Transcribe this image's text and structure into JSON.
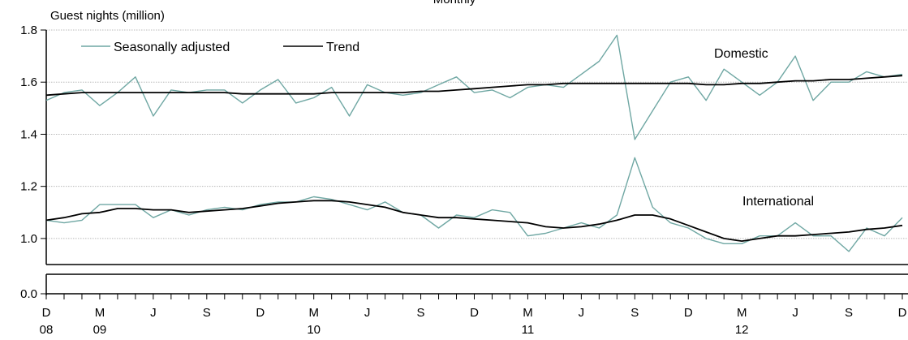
{
  "chart_data": {
    "type": "line",
    "title": "Monthly",
    "ylabel": "Guest nights (million)",
    "ylim": [
      0.9,
      1.8
    ],
    "y_axis_break": {
      "lower_label": "0.0"
    },
    "y_ticks": [
      1.0,
      1.2,
      1.4,
      1.6,
      1.8
    ],
    "y_tick_labels": [
      "1.0",
      "1.2",
      "1.4",
      "1.6",
      "1.8"
    ],
    "grid": true,
    "legend_position": "top-left",
    "legend": [
      {
        "label": "Seasonally adjusted",
        "color": "#6fa7a3"
      },
      {
        "label": "Trend",
        "color": "#000000"
      }
    ],
    "annotations": [
      "Domestic",
      "International"
    ],
    "x_ticks": [
      {
        "month": "D",
        "year": "08"
      },
      {
        "month": "M",
        "year": "09"
      },
      {
        "month": "J",
        "year": ""
      },
      {
        "month": "S",
        "year": ""
      },
      {
        "month": "D",
        "year": ""
      },
      {
        "month": "M",
        "year": "10"
      },
      {
        "month": "J",
        "year": ""
      },
      {
        "month": "S",
        "year": ""
      },
      {
        "month": "D",
        "year": ""
      },
      {
        "month": "M",
        "year": "11"
      },
      {
        "month": "J",
        "year": ""
      },
      {
        "month": "S",
        "year": ""
      },
      {
        "month": "D",
        "year": ""
      },
      {
        "month": "M",
        "year": "12"
      },
      {
        "month": "J",
        "year": ""
      },
      {
        "month": "S",
        "year": ""
      },
      {
        "month": "D",
        "year": ""
      }
    ],
    "x": [
      "2008-12",
      "2009-01",
      "2009-02",
      "2009-03",
      "2009-04",
      "2009-05",
      "2009-06",
      "2009-07",
      "2009-08",
      "2009-09",
      "2009-10",
      "2009-11",
      "2009-12",
      "2010-01",
      "2010-02",
      "2010-03",
      "2010-04",
      "2010-05",
      "2010-06",
      "2010-07",
      "2010-08",
      "2010-09",
      "2010-10",
      "2010-11",
      "2010-12",
      "2011-01",
      "2011-02",
      "2011-03",
      "2011-04",
      "2011-05",
      "2011-06",
      "2011-07",
      "2011-08",
      "2011-09",
      "2011-10",
      "2011-11",
      "2011-12",
      "2012-01",
      "2012-02",
      "2012-03",
      "2012-04",
      "2012-05",
      "2012-06",
      "2012-07",
      "2012-08",
      "2012-09",
      "2012-10",
      "2012-11",
      "2012-12"
    ],
    "series": [
      {
        "group": "Domestic",
        "kind": "Seasonally adjusted",
        "color": "#6fa7a3",
        "values": [
          1.53,
          1.56,
          1.57,
          1.51,
          1.56,
          1.62,
          1.47,
          1.57,
          1.56,
          1.57,
          1.57,
          1.52,
          1.57,
          1.61,
          1.52,
          1.54,
          1.58,
          1.47,
          1.59,
          1.56,
          1.55,
          1.56,
          1.59,
          1.62,
          1.56,
          1.57,
          1.54,
          1.58,
          1.59,
          1.58,
          1.63,
          1.68,
          1.78,
          1.38,
          1.49,
          1.6,
          1.62,
          1.53,
          1.65,
          1.6,
          1.55,
          1.6,
          1.7,
          1.53,
          1.6,
          1.6,
          1.64,
          1.62,
          1.63
        ]
      },
      {
        "group": "Domestic",
        "kind": "Trend",
        "color": "#000000",
        "values": [
          1.55,
          1.555,
          1.56,
          1.56,
          1.56,
          1.56,
          1.56,
          1.56,
          1.56,
          1.56,
          1.56,
          1.555,
          1.555,
          1.555,
          1.555,
          1.555,
          1.56,
          1.56,
          1.56,
          1.56,
          1.56,
          1.565,
          1.565,
          1.57,
          1.575,
          1.58,
          1.585,
          1.59,
          1.59,
          1.595,
          1.595,
          1.595,
          1.595,
          1.595,
          1.595,
          1.595,
          1.595,
          1.59,
          1.59,
          1.595,
          1.595,
          1.6,
          1.605,
          1.605,
          1.61,
          1.61,
          1.615,
          1.62,
          1.625
        ]
      },
      {
        "group": "International",
        "kind": "Seasonally adjusted",
        "color": "#6fa7a3",
        "values": [
          1.07,
          1.06,
          1.07,
          1.13,
          1.13,
          1.13,
          1.08,
          1.11,
          1.09,
          1.11,
          1.12,
          1.11,
          1.13,
          1.14,
          1.14,
          1.16,
          1.15,
          1.13,
          1.11,
          1.14,
          1.1,
          1.09,
          1.04,
          1.09,
          1.08,
          1.11,
          1.1,
          1.01,
          1.02,
          1.04,
          1.06,
          1.04,
          1.09,
          1.31,
          1.12,
          1.06,
          1.04,
          1.0,
          0.98,
          0.98,
          1.01,
          1.01,
          1.06,
          1.01,
          1.01,
          0.95,
          1.04,
          1.01,
          1.08
        ]
      },
      {
        "group": "International",
        "kind": "Trend",
        "color": "#000000",
        "values": [
          1.07,
          1.08,
          1.095,
          1.1,
          1.115,
          1.115,
          1.11,
          1.11,
          1.1,
          1.105,
          1.11,
          1.115,
          1.125,
          1.135,
          1.14,
          1.145,
          1.145,
          1.14,
          1.13,
          1.12,
          1.1,
          1.09,
          1.08,
          1.08,
          1.075,
          1.07,
          1.065,
          1.06,
          1.045,
          1.04,
          1.045,
          1.055,
          1.07,
          1.09,
          1.09,
          1.075,
          1.05,
          1.025,
          1.0,
          0.99,
          1.0,
          1.01,
          1.01,
          1.015,
          1.02,
          1.025,
          1.035,
          1.04,
          1.05
        ]
      }
    ]
  }
}
